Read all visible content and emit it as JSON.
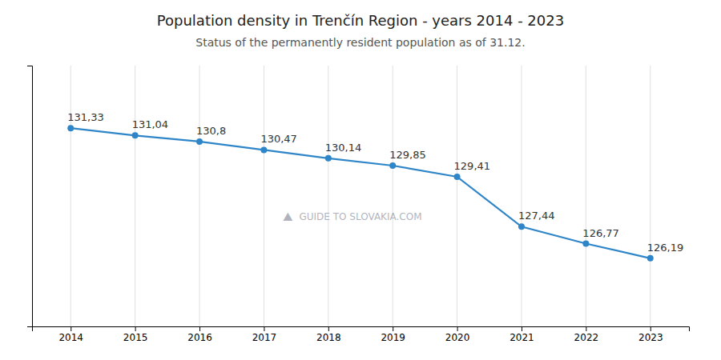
{
  "chart_data": {
    "type": "line",
    "title": "Population density in Trenčín Region - years 2014 - 2023",
    "subtitle": "Status of the permanently resident population as of 31.12.",
    "x": [
      2014,
      2015,
      2016,
      2017,
      2018,
      2019,
      2020,
      2021,
      2022,
      2023
    ],
    "values": [
      131.33,
      131.04,
      130.8,
      130.47,
      130.14,
      129.85,
      129.41,
      127.44,
      126.77,
      126.19
    ],
    "value_labels": [
      "131,33",
      "131,04",
      "130,8",
      "130,47",
      "130,14",
      "129,85",
      "129,41",
      "127,44",
      "126,77",
      "126,19"
    ],
    "data_labels": true,
    "color": "#2e86c8",
    "marker": "circle",
    "xlim": [
      2013.4,
      2023.6
    ],
    "xticks": [
      2014,
      2015,
      2016,
      2017,
      2018,
      2019,
      2020,
      2021,
      2022,
      2023
    ],
    "ylim": [
      123.5,
      133.8
    ],
    "yticks": [],
    "tick_labels": "x",
    "grid": true,
    "annotations": [
      "⛰",
      "GUIDE TO SLOVAKIA.COM"
    ]
  }
}
